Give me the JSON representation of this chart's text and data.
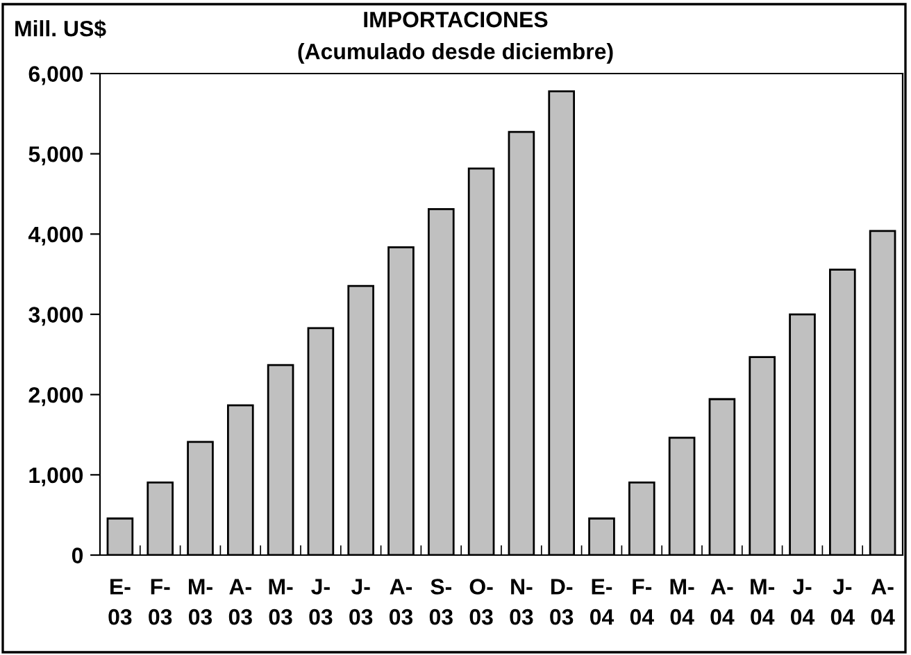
{
  "chart_data": {
    "type": "bar",
    "title": "IMPORTACIONES\n(Acumulado desde diciembre)",
    "ylabel": "Mill. US$",
    "categories": [
      "E-\n03",
      "F-\n03",
      "M-\n03",
      "A-\n03",
      "M-\n03",
      "J-\n03",
      "J-\n03",
      "A-\n03",
      "S-\n03",
      "O-\n03",
      "N-\n03",
      "D-\n03",
      "E-\n04",
      "F-\n04",
      "M-\n04",
      "A-\n04",
      "M-\n04",
      "J-\n04",
      "J-\n04",
      "A-\n04"
    ],
    "values": [
      456,
      905,
      1411,
      1867,
      2367,
      2829,
      3354,
      3835,
      4310,
      4816,
      5272,
      5778,
      456,
      905,
      1462,
      1943,
      2468,
      2998,
      3557,
      4038
    ],
    "color": "#c0c0c0",
    "ylim": [
      0,
      6000
    ],
    "yticks": [
      {
        "value": 0,
        "label": "0"
      },
      {
        "value": 1000,
        "label": "1,000"
      },
      {
        "value": 2000,
        "label": "2,000"
      },
      {
        "value": 3000,
        "label": "3,000"
      },
      {
        "value": 4000,
        "label": "4,000"
      },
      {
        "value": 5000,
        "label": "5,000"
      },
      {
        "value": 6000,
        "label": "6,000"
      }
    ],
    "grid": false
  }
}
